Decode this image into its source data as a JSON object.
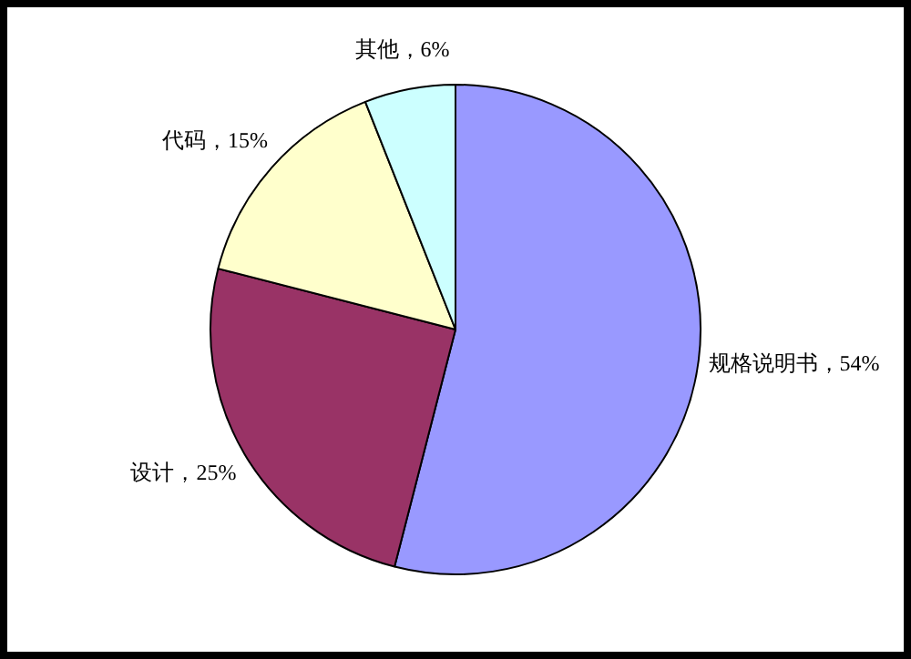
{
  "chart_data": {
    "type": "pie",
    "categories": [
      "规格说明书",
      "设计",
      "代码",
      "其他"
    ],
    "values": [
      54,
      25,
      15,
      6
    ],
    "colors": [
      "#9999ff",
      "#993366",
      "#ffffcc",
      "#ccffff"
    ],
    "value_labels": [
      "54%",
      "25%",
      "15%",
      "6%"
    ],
    "legend": false
  }
}
